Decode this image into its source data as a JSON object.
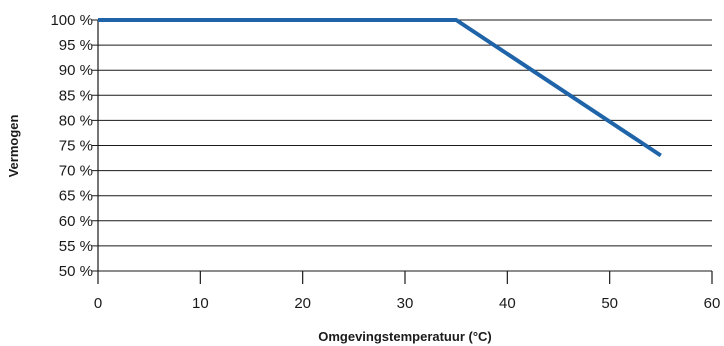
{
  "chart_data": {
    "type": "line",
    "title": "",
    "xlabel": "Omgevingstemperatuur (°C)",
    "ylabel": "Vermogen",
    "xlim": [
      0,
      60
    ],
    "ylim": [
      50,
      100
    ],
    "x_ticks": [
      0,
      10,
      20,
      30,
      40,
      50,
      60
    ],
    "y_ticks": [
      50,
      55,
      60,
      65,
      70,
      75,
      80,
      85,
      90,
      95,
      100
    ],
    "y_tick_labels": [
      "50 %",
      "55 %",
      "60 %",
      "65 %",
      "70 %",
      "75 %",
      "80 %",
      "85 %",
      "90 %",
      "95 %",
      "100 %"
    ],
    "grid": "horizontal",
    "series": [
      {
        "x": [
          0,
          35,
          55
        ],
        "y": [
          100,
          100,
          73
        ],
        "color": "#1f64a8"
      }
    ]
  }
}
